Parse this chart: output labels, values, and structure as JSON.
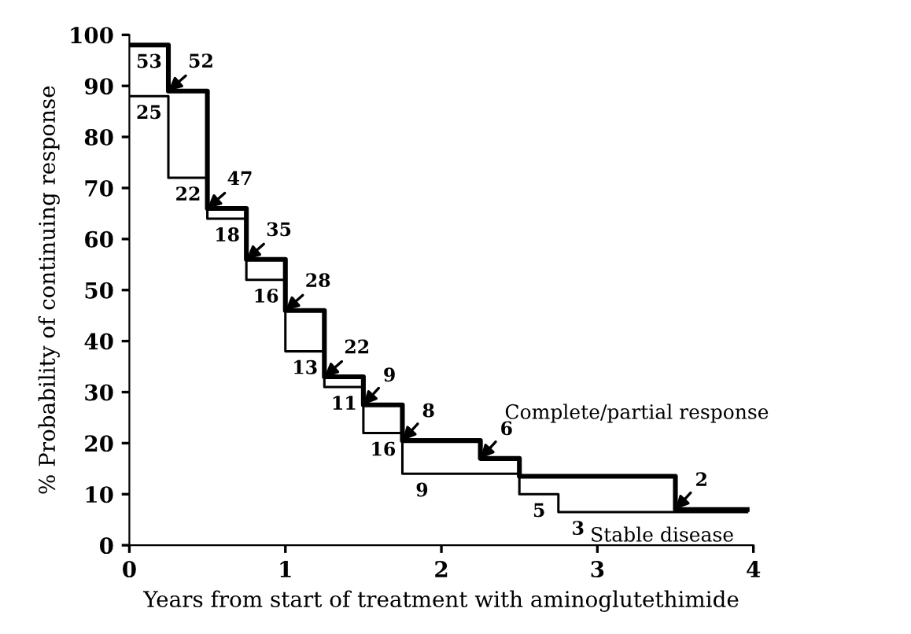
{
  "chart_data": {
    "type": "step",
    "xlabel": "Years from start of treatment with aminoglutethimide",
    "ylabel": "% Probability of continuing response",
    "xlim": [
      0,
      4
    ],
    "xticks": [
      0,
      1,
      2,
      3,
      4
    ],
    "ylim": [
      0,
      100
    ],
    "yticks": [
      0,
      10,
      20,
      30,
      40,
      50,
      60,
      70,
      80,
      90,
      100
    ],
    "grid": false,
    "legend": "right",
    "series": [
      {
        "name": "Complete/partial response",
        "color": "#000000",
        "x": [
          0,
          0.25,
          0.5,
          0.75,
          1.0,
          1.25,
          1.5,
          1.75,
          2.25,
          2.5,
          3.5,
          3.96
        ],
        "values": [
          98,
          89,
          66,
          56,
          46,
          33,
          27.5,
          20.5,
          17,
          13.5,
          7,
          7
        ]
      },
      {
        "name": "Stable disease",
        "color": "#000000",
        "x": [
          0,
          0.25,
          0.5,
          0.75,
          1.0,
          1.25,
          1.5,
          1.75,
          2.5,
          2.75,
          3.96
        ],
        "values": [
          88,
          72,
          64,
          52,
          38,
          31,
          22,
          14,
          10,
          6.5,
          6.5
        ]
      }
    ],
    "annotations": [
      {
        "text": "52",
        "x": 0.25,
        "y": 89
      },
      {
        "text": "47",
        "x": 0.5,
        "y": 66
      },
      {
        "text": "35",
        "x": 0.75,
        "y": 56
      },
      {
        "text": "28",
        "x": 1.0,
        "y": 46
      },
      {
        "text": "22",
        "x": 1.25,
        "y": 33
      },
      {
        "text": "9",
        "x": 1.5,
        "y": 27.5
      },
      {
        "text": "8",
        "x": 1.75,
        "y": 20.5
      },
      {
        "text": "6",
        "x": 2.25,
        "y": 17
      },
      {
        "text": "2",
        "x": 3.5,
        "y": 7
      },
      {
        "text": "53",
        "x": 0,
        "y": 98
      },
      {
        "text": "25",
        "x": 0,
        "y": 88
      },
      {
        "text": "22",
        "x": 0.25,
        "y": 72
      },
      {
        "text": "18",
        "x": 0.5,
        "y": 64
      },
      {
        "text": "16",
        "x": 0.75,
        "y": 52
      },
      {
        "text": "13",
        "x": 1.0,
        "y": 38
      },
      {
        "text": "11",
        "x": 1.25,
        "y": 31
      },
      {
        "text": "16",
        "x": 1.5,
        "y": 22
      },
      {
        "text": "9",
        "x": 1.75,
        "y": 14
      },
      {
        "text": "5",
        "x": 2.5,
        "y": 10
      },
      {
        "text": "3",
        "x": 2.75,
        "y": 6.5
      }
    ]
  }
}
